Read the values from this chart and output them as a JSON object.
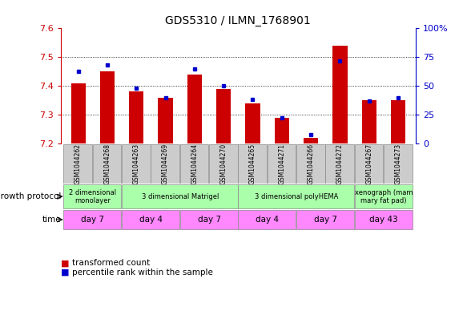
{
  "title": "GDS5310 / ILMN_1768901",
  "samples": [
    "GSM1044262",
    "GSM1044268",
    "GSM1044263",
    "GSM1044269",
    "GSM1044264",
    "GSM1044270",
    "GSM1044265",
    "GSM1044271",
    "GSM1044266",
    "GSM1044272",
    "GSM1044267",
    "GSM1044273"
  ],
  "transformed_count": [
    7.41,
    7.45,
    7.38,
    7.36,
    7.44,
    7.39,
    7.34,
    7.29,
    7.22,
    7.54,
    7.35,
    7.35
  ],
  "percentile_rank": [
    63,
    68,
    48,
    40,
    65,
    50,
    38,
    22,
    8,
    72,
    37,
    40
  ],
  "ymin": 7.2,
  "ymax": 7.6,
  "yright_min": 0,
  "yright_max": 100,
  "bar_color": "#cc0000",
  "dot_color": "#0000cc",
  "bg_color": "#ffffff",
  "plot_bg": "#ffffff",
  "left_label_color": "#cc0000",
  "right_label_color": "#0000cc",
  "sample_row_color": "#cccccc",
  "growth_protocol_groups": [
    {
      "label": "2 dimensional\nmonolayer",
      "start": 0,
      "end": 2,
      "color": "#aaffaa"
    },
    {
      "label": "3 dimensional Matrigel",
      "start": 2,
      "end": 6,
      "color": "#aaffaa"
    },
    {
      "label": "3 dimensional polyHEMA",
      "start": 6,
      "end": 10,
      "color": "#aaffaa"
    },
    {
      "label": "xenograph (mam\nmary fat pad)",
      "start": 10,
      "end": 12,
      "color": "#aaffaa"
    }
  ],
  "time_groups": [
    {
      "label": "day 7",
      "start": 0,
      "end": 2,
      "color": "#ff88ff"
    },
    {
      "label": "day 4",
      "start": 2,
      "end": 4,
      "color": "#ff88ff"
    },
    {
      "label": "day 7",
      "start": 4,
      "end": 6,
      "color": "#ff88ff"
    },
    {
      "label": "day 4",
      "start": 6,
      "end": 8,
      "color": "#ff88ff"
    },
    {
      "label": "day 7",
      "start": 8,
      "end": 10,
      "color": "#ff88ff"
    },
    {
      "label": "day 43",
      "start": 10,
      "end": 12,
      "color": "#ff88ff"
    }
  ],
  "growth_protocol_label": "growth protocol",
  "time_label": "time",
  "legend": [
    {
      "label": "transformed count",
      "color": "#cc0000"
    },
    {
      "label": "percentile rank within the sample",
      "color": "#0000cc"
    }
  ]
}
